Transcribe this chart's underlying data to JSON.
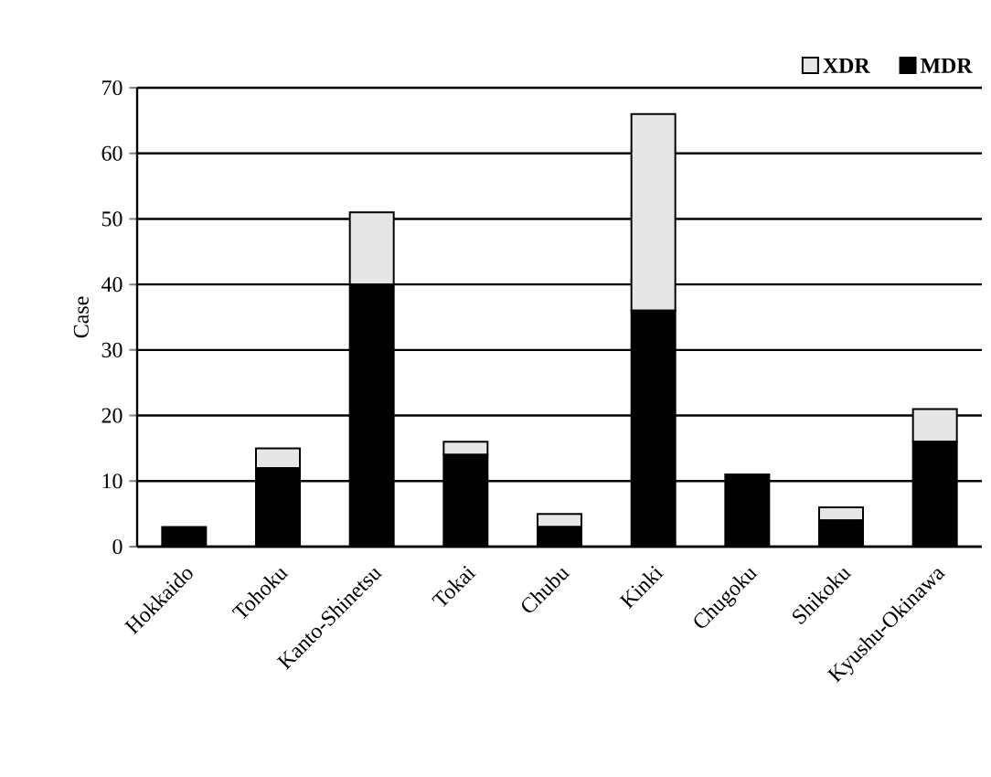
{
  "chart_data": {
    "type": "bar",
    "ylabel": "Case",
    "stacked": true,
    "categories": [
      "Hokkaido",
      "Tohoku",
      "Kanto-Shinetsu",
      "Tokai",
      "Chubu",
      "Kinki",
      "Chugoku",
      "Shikoku",
      "Kyushu-Okinawa"
    ],
    "series": [
      {
        "name": "MDR",
        "color": "#000000",
        "values": [
          3,
          12,
          40,
          14,
          3,
          36,
          11,
          4,
          16
        ]
      },
      {
        "name": "XDR",
        "color": "#e6e6e6",
        "values": [
          0,
          3,
          11,
          2,
          2,
          30,
          0,
          2,
          5
        ]
      }
    ],
    "ylim": [
      0,
      70
    ],
    "yticks": [
      0,
      10,
      20,
      30,
      40,
      50,
      60,
      70
    ],
    "grid": "y",
    "legend": "top right"
  }
}
